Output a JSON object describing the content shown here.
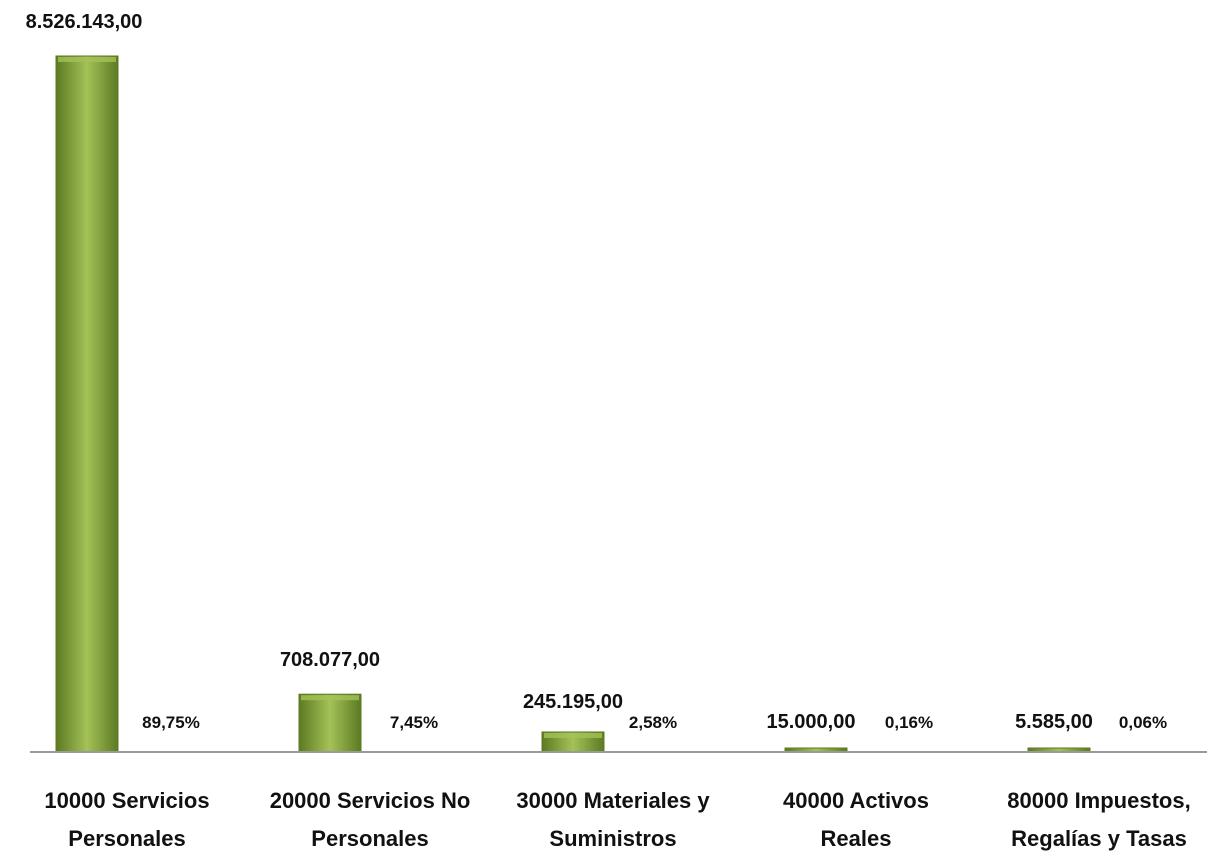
{
  "chart_data": {
    "type": "bar",
    "categories": [
      [
        "10000 Servicios",
        "Personales"
      ],
      [
        "20000 Servicios No",
        "Personales"
      ],
      [
        "30000 Materiales y",
        "Suministros"
      ],
      [
        "40000 Activos",
        "Reales"
      ],
      [
        "80000 Impuestos,",
        "Regalías y Tasas"
      ]
    ],
    "values": [
      8526143.0,
      708077.0,
      245195.0,
      15000.0,
      5585.0
    ],
    "value_labels": [
      "8.526.143,00",
      "708.077,00",
      "245.195,00",
      "15.000,00",
      "5.585,00"
    ],
    "percent_labels": [
      "89,75%",
      "7,45%",
      "2,58%",
      "0,16%",
      "0,06%"
    ],
    "ylim": [
      0,
      8526143
    ],
    "grid": false,
    "title": "",
    "xlabel": "",
    "ylabel": "",
    "colors": {
      "bar": "#7a9a34",
      "bar_light": "#a4c257",
      "bar_dark": "#5c7a22",
      "axis": "#9a9a9a"
    }
  }
}
